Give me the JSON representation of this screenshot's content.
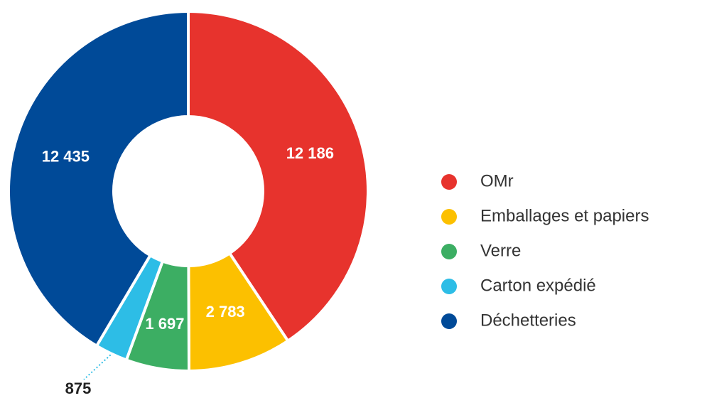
{
  "chart_data": {
    "type": "donut",
    "categories": [
      "OMr",
      "Emballages et papiers",
      "Verre",
      "Carton expédié",
      "Déchetteries"
    ],
    "values": [
      12186,
      2783,
      1697,
      875,
      12435
    ],
    "value_labels": [
      "12 186",
      "2 783",
      "1 697",
      "875",
      "12 435"
    ],
    "colors": [
      "#e7332d",
      "#fcc000",
      "#3cae63",
      "#2dbde6",
      "#004a98"
    ],
    "legend": "right"
  }
}
